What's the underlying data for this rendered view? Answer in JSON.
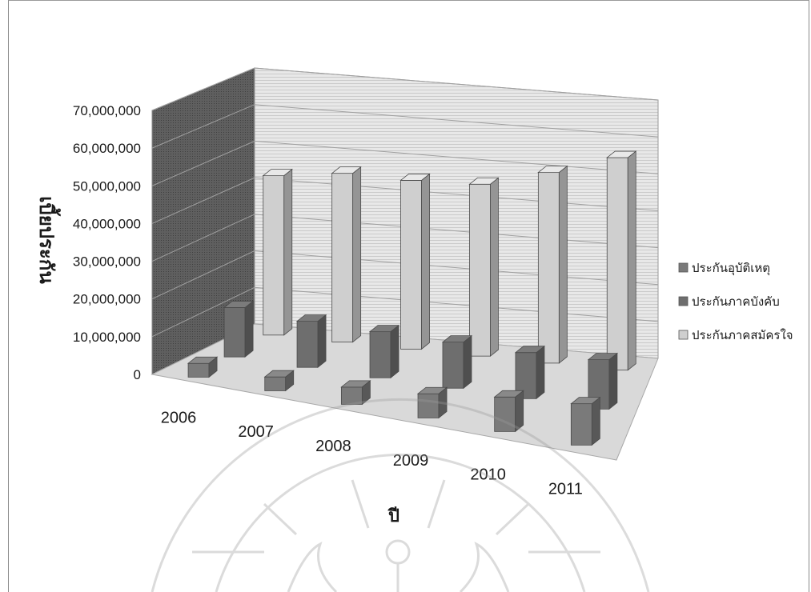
{
  "chart_data": {
    "type": "bar",
    "subtype": "3d-clustered-column",
    "title": "",
    "xlabel": "ปี",
    "ylabel": "เบี้ยประกัน",
    "categories": [
      "2006",
      "2007",
      "2008",
      "2009",
      "2010",
      "2011"
    ],
    "series": [
      {
        "name": "ประกันอุบัติเหตุ",
        "values": [
          4000000,
          4000000,
          5000000,
          7000000,
          10000000,
          12000000
        ],
        "color": "#7a7a7a"
      },
      {
        "name": "ประกันภาคบังคับ",
        "values": [
          15000000,
          14000000,
          14000000,
          14000000,
          14000000,
          15000000
        ],
        "color": "#6e6e6e"
      },
      {
        "name": "ประกันภาคสมัครใจ",
        "values": [
          51000000,
          54000000,
          54000000,
          55000000,
          61000000,
          68000000
        ],
        "color": "#cfcfcf"
      }
    ],
    "y_ticks": [
      "0",
      "10,000,000",
      "20,000,000",
      "30,000,000",
      "40,000,000",
      "50,000,000",
      "60,000,000",
      "70,000,000"
    ],
    "ylim": [
      0,
      70000000
    ],
    "grid": true,
    "legend_position": "right"
  }
}
